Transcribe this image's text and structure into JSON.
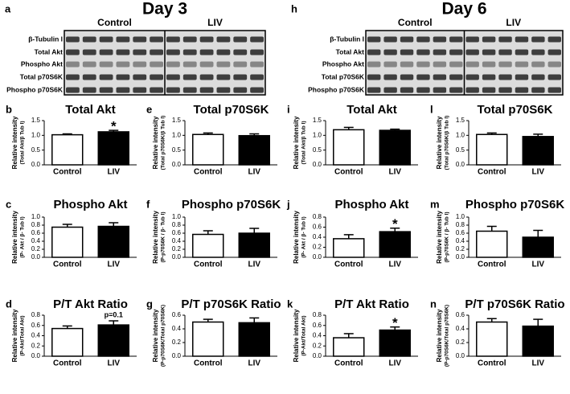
{
  "blots": [
    {
      "panel": "a",
      "title": "Day 3",
      "groups": [
        "Control",
        "LIV"
      ],
      "rows": [
        "β-Tubulin I",
        "Total Akt",
        "Phospho Akt",
        "Total p70S6K",
        "Phospho p70S6K"
      ]
    },
    {
      "panel": "h",
      "title": "Day 6",
      "groups": [
        "Control",
        "LIV"
      ],
      "rows": [
        "β-Tubulin I",
        "Total Akt",
        "Phospho Akt",
        "Total p70S6K",
        "Phospho p70S6K"
      ]
    }
  ],
  "chart_data": [
    {
      "type": "bar",
      "panel": "b",
      "title": "Total Akt",
      "ylabel": [
        "Relative intensity",
        "(Total Akt/β Tub I)"
      ],
      "categories": [
        "Control",
        "LIV"
      ],
      "values": [
        1.02,
        1.12
      ],
      "errors": [
        0.03,
        0.05
      ],
      "colors": [
        "#ffffff",
        "#000000"
      ],
      "ylim": [
        0,
        1.5
      ],
      "yticks": [
        {
          "value": 0,
          "label": "0.0"
        },
        0.5,
        {
          "value": 1,
          "label": "1.0"
        },
        1.5
      ],
      "annotation": {
        "text": "*",
        "category": "LIV"
      }
    },
    {
      "type": "bar",
      "panel": "c",
      "title": "Phospho Akt",
      "ylabel": [
        "Relative intensity",
        "(P- Akt / β- Tub I)"
      ],
      "categories": [
        "Control",
        "LIV"
      ],
      "values": [
        0.75,
        0.77
      ],
      "errors": [
        0.07,
        0.09
      ],
      "colors": [
        "#ffffff",
        "#000000"
      ],
      "ylim": [
        0,
        1
      ],
      "yticks": [
        {
          "value": 0,
          "label": "0.0"
        },
        0.2,
        0.4,
        0.6,
        0.8,
        {
          "value": 1,
          "label": "1.0"
        }
      ]
    },
    {
      "type": "bar",
      "panel": "d",
      "title": "P/T Akt Ratio",
      "ylabel": [
        "Relative intensity",
        "(P-Akt/Total Akt)"
      ],
      "categories": [
        "Control",
        "LIV"
      ],
      "values": [
        0.54,
        0.61
      ],
      "errors": [
        0.05,
        0.08
      ],
      "colors": [
        "#ffffff",
        "#000000"
      ],
      "ylim": [
        0,
        0.8
      ],
      "yticks": [
        {
          "value": 0,
          "label": "0.0"
        },
        0.2,
        0.4,
        0.6,
        0.8
      ],
      "annotation": {
        "text": "p=0.1",
        "category": "LIV"
      }
    },
    {
      "type": "bar",
      "panel": "e",
      "title": "Total p70S6K",
      "ylabel": [
        "Relative intensity",
        "(Total p70S6K/β Tub I)"
      ],
      "categories": [
        "Control",
        "LIV"
      ],
      "values": [
        1.03,
        0.99
      ],
      "errors": [
        0.05,
        0.06
      ],
      "colors": [
        "#ffffff",
        "#000000"
      ],
      "ylim": [
        0,
        1.5
      ],
      "yticks": [
        {
          "value": 0,
          "label": "0.0"
        },
        0.5,
        {
          "value": 1,
          "label": "1.0"
        },
        1.5
      ]
    },
    {
      "type": "bar",
      "panel": "f",
      "title": "Phospho p70S6K",
      "ylabel": [
        "Relative intensity",
        "(P-p70S6K / β- Tub I)"
      ],
      "categories": [
        "Control",
        "LIV"
      ],
      "values": [
        0.57,
        0.6
      ],
      "errors": [
        0.09,
        0.12
      ],
      "colors": [
        "#ffffff",
        "#000000"
      ],
      "ylim": [
        0,
        1
      ],
      "yticks": [
        {
          "value": 0,
          "label": "0.0"
        },
        0.2,
        0.4,
        0.6,
        0.8,
        {
          "value": 1,
          "label": "1.0"
        }
      ]
    },
    {
      "type": "bar",
      "panel": "g",
      "title": "P/T p70S6K Ratio",
      "ylabel": [
        "Relative intensity",
        "(P-p70S6K/Total p70S6K)"
      ],
      "categories": [
        "Control",
        "LIV"
      ],
      "values": [
        0.5,
        0.49
      ],
      "errors": [
        0.04,
        0.07
      ],
      "colors": [
        "#ffffff",
        "#000000"
      ],
      "ylim": [
        0,
        0.6
      ],
      "yticks": [
        {
          "value": 0,
          "label": "0.0"
        },
        0.2,
        0.4,
        0.6
      ]
    },
    {
      "type": "bar",
      "panel": "i",
      "title": "Total Akt",
      "ylabel": [
        "Relative intensity",
        "(Total Akt/β Tub I)"
      ],
      "categories": [
        "Control",
        "LIV"
      ],
      "values": [
        1.19,
        1.17
      ],
      "errors": [
        0.08,
        0.04
      ],
      "colors": [
        "#ffffff",
        "#000000"
      ],
      "ylim": [
        0,
        1.5
      ],
      "yticks": [
        {
          "value": 0,
          "label": "0.0"
        },
        0.5,
        {
          "value": 1,
          "label": "1.0"
        },
        1.5
      ]
    },
    {
      "type": "bar",
      "panel": "j",
      "title": "Phospho Akt",
      "ylabel": [
        "Relative intensity",
        "(P- Akt / β- Tub I)"
      ],
      "categories": [
        "Control",
        "LIV"
      ],
      "values": [
        0.37,
        0.51
      ],
      "errors": [
        0.08,
        0.07
      ],
      "colors": [
        "#ffffff",
        "#000000"
      ],
      "ylim": [
        0,
        0.8
      ],
      "yticks": [
        {
          "value": 0,
          "label": "0.0"
        },
        0.2,
        0.4,
        0.6,
        0.8
      ],
      "annotation": {
        "text": "*",
        "category": "LIV"
      }
    },
    {
      "type": "bar",
      "panel": "k",
      "title": "P/T Akt Ratio",
      "ylabel": [
        "Relative intensity",
        "(P-Akt/Total Akt)"
      ],
      "categories": [
        "Control",
        "LIV"
      ],
      "values": [
        0.36,
        0.51
      ],
      "errors": [
        0.08,
        0.06
      ],
      "colors": [
        "#ffffff",
        "#000000"
      ],
      "ylim": [
        0,
        0.8
      ],
      "yticks": [
        {
          "value": 0,
          "label": "0.0"
        },
        0.2,
        0.4,
        0.6,
        0.8
      ],
      "annotation": {
        "text": "*",
        "category": "LIV"
      }
    },
    {
      "type": "bar",
      "panel": "l",
      "title": "Total p70S6K",
      "ylabel": [
        "Relative intensity",
        "(Total p70S6K/β Tub I)"
      ],
      "categories": [
        "Control",
        "LIV"
      ],
      "values": [
        1.03,
        0.96
      ],
      "errors": [
        0.05,
        0.08
      ],
      "colors": [
        "#ffffff",
        "#000000"
      ],
      "ylim": [
        0,
        1.5
      ],
      "yticks": [
        {
          "value": 0,
          "label": "0.0"
        },
        0.5,
        {
          "value": 1,
          "label": "1.0"
        },
        1.5
      ]
    },
    {
      "type": "bar",
      "panel": "m",
      "title": "Phospho p70S6K",
      "ylabel": [
        "Relative intensity",
        "(P-p70S6K / β- Tub I)"
      ],
      "categories": [
        "Control",
        "LIV"
      ],
      "values": [
        0.65,
        0.5
      ],
      "errors": [
        0.12,
        0.17
      ],
      "colors": [
        "#ffffff",
        "#000000"
      ],
      "ylim": [
        0,
        1
      ],
      "yticks": [
        {
          "value": 0,
          "label": "0.0"
        },
        0.2,
        0.4,
        0.6,
        0.8,
        {
          "value": 1,
          "label": "1.0"
        }
      ]
    },
    {
      "type": "bar",
      "panel": "n",
      "title": "P/T p70S6K Ratio",
      "ylabel": [
        "Relative intensity",
        "(P-p70S6K/Total p70S6K)"
      ],
      "categories": [
        "Control",
        "LIV"
      ],
      "values": [
        0.5,
        0.44
      ],
      "errors": [
        0.05,
        0.1
      ],
      "colors": [
        "#ffffff",
        "#000000"
      ],
      "ylim": [
        0,
        0.6
      ],
      "yticks": [
        {
          "value": 0,
          "label": "0.0"
        },
        0.2,
        0.4,
        0.6
      ]
    }
  ]
}
